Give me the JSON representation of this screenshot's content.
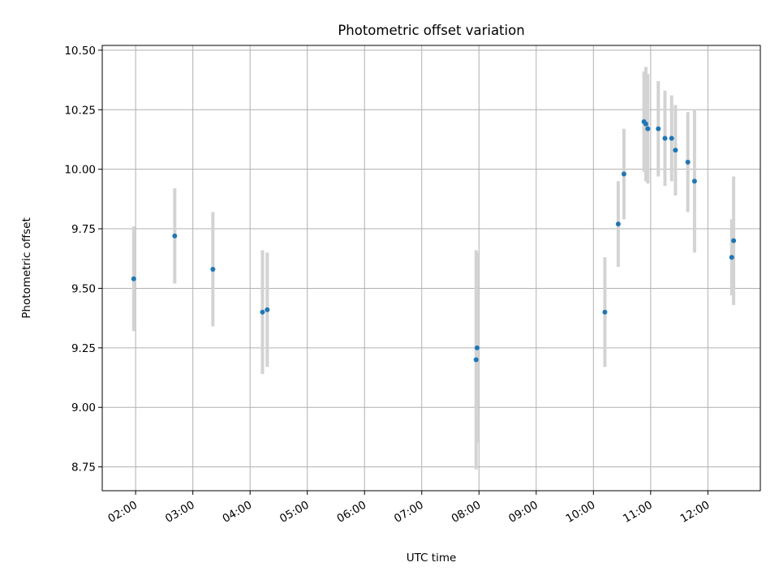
{
  "chart_data": {
    "type": "scatter",
    "title": "Photometric offset variation",
    "xlabel": "UTC time",
    "ylabel": "Photometric offset",
    "x_unit": "UTC time (HH:MM)",
    "xlim": [
      "01:25",
      "12:55"
    ],
    "ylim": [
      8.65,
      10.52
    ],
    "x_ticks": [
      "02:00",
      "03:00",
      "04:00",
      "05:00",
      "06:00",
      "07:00",
      "08:00",
      "09:00",
      "10:00",
      "11:00",
      "12:00"
    ],
    "y_ticks": [
      "8.75",
      "9.00",
      "9.25",
      "9.50",
      "9.75",
      "10.00",
      "10.25",
      "10.50"
    ],
    "grid": true,
    "legend": "none",
    "colors": {
      "point": "#1f77b4",
      "errorbar": "#d3d3d3",
      "grid": "#b0b0b0"
    },
    "points": [
      {
        "time": "01:58",
        "y": 9.54,
        "err": 0.22
      },
      {
        "time": "02:41",
        "y": 9.72,
        "err": 0.2
      },
      {
        "time": "03:21",
        "y": 9.58,
        "err": 0.24
      },
      {
        "time": "04:13",
        "y": 9.4,
        "err": 0.26
      },
      {
        "time": "04:18",
        "y": 9.41,
        "err": 0.24
      },
      {
        "time": "07:57",
        "y": 9.2,
        "err": 0.46
      },
      {
        "time": "07:58",
        "y": 9.25,
        "err": 0.4
      },
      {
        "time": "10:12",
        "y": 9.4,
        "err": 0.23
      },
      {
        "time": "10:26",
        "y": 9.77,
        "err": 0.18
      },
      {
        "time": "10:32",
        "y": 9.98,
        "err": 0.19
      },
      {
        "time": "10:53",
        "y": 10.2,
        "err": 0.21
      },
      {
        "time": "10:55",
        "y": 10.19,
        "err": 0.24
      },
      {
        "time": "10:57",
        "y": 10.17,
        "err": 0.23
      },
      {
        "time": "11:08",
        "y": 10.17,
        "err": 0.2
      },
      {
        "time": "11:15",
        "y": 10.13,
        "err": 0.2
      },
      {
        "time": "11:22",
        "y": 10.13,
        "err": 0.18
      },
      {
        "time": "11:26",
        "y": 10.08,
        "err": 0.19
      },
      {
        "time": "11:39",
        "y": 10.03,
        "err": 0.21
      },
      {
        "time": "11:46",
        "y": 9.95,
        "err": 0.3
      },
      {
        "time": "12:25",
        "y": 9.63,
        "err": 0.16
      },
      {
        "time": "12:27",
        "y": 9.7,
        "err": 0.27
      }
    ]
  }
}
